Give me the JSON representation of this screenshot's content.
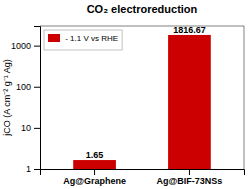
{
  "chart_data": {
    "type": "bar",
    "title": "CO₂ electroreduction",
    "ylabel": "jCO (A cm⁻² g⁻¹ Ag)",
    "categories": [
      "Ag@Graphene",
      "Ag@BIF-73NSs"
    ],
    "series": [
      {
        "name": " - 1.1 V vs RHE",
        "color": "#cc0000",
        "values": [
          1.65,
          1816.67
        ]
      }
    ],
    "log": "y",
    "ylim": [
      1,
      3000
    ],
    "yticks": [
      1,
      10,
      100,
      1000
    ],
    "legend": "upper left",
    "data_labels": true,
    "grid": false
  }
}
